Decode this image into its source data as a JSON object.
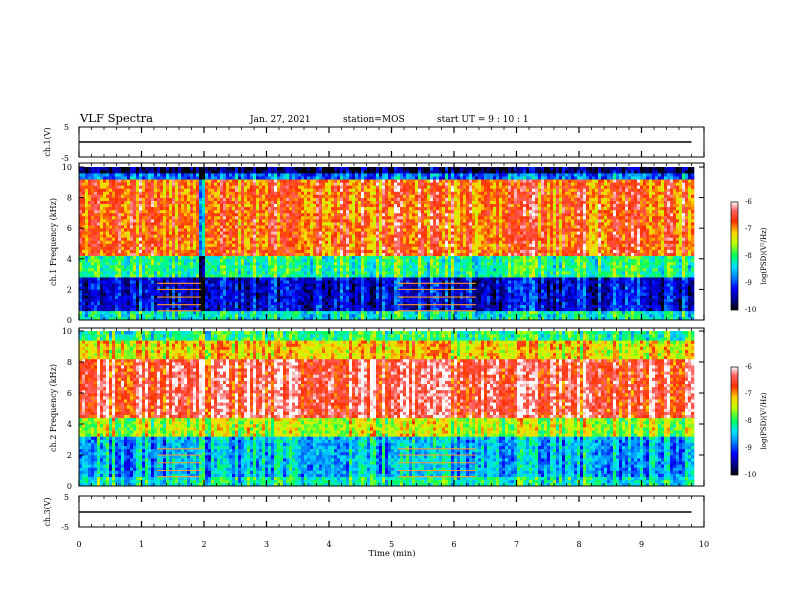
{
  "header": {
    "title": "VLF Spectra",
    "date": "Jan. 27, 2021",
    "station": "station=MOS",
    "start": "start UT =  9 : 10 : 1"
  },
  "chart_data": [
    {
      "type": "line",
      "name": "ch1-waveform",
      "ylabel": "ch.1(V)",
      "ylim": [
        -5,
        5
      ],
      "yticks": [
        "5",
        "-5"
      ],
      "xlim": [
        0,
        10
      ],
      "x": [
        0,
        1.95,
        2.0,
        9.8
      ],
      "y": [
        0,
        0,
        0,
        0
      ]
    },
    {
      "type": "heatmap",
      "name": "ch1-spectrogram",
      "ylabel": "ch.1 Frequency (kHz)",
      "ylim": [
        0,
        10
      ],
      "yticks": [
        "0",
        "2",
        "4",
        "6",
        "8",
        "10"
      ],
      "xlim": [
        0,
        10
      ],
      "data_extent_x": [
        0,
        9.8
      ],
      "colorbar": {
        "label": "log(PSD)(V²/Hz)",
        "range": [
          -10,
          -6
        ],
        "ticks": [
          "-6",
          "-7",
          "-8",
          "-9",
          "-10"
        ]
      }
    },
    {
      "type": "heatmap",
      "name": "ch2-spectrogram",
      "ylabel": "ch.2 Frequency (kHz)",
      "ylim": [
        0,
        10
      ],
      "yticks": [
        "0",
        "2",
        "4",
        "6",
        "8",
        "10"
      ],
      "xlim": [
        0,
        10
      ],
      "data_extent_x": [
        0,
        9.8
      ],
      "colorbar": {
        "label": "log(PSD)(V²/Hz)",
        "range": [
          -10,
          -6
        ],
        "ticks": [
          "-6",
          "-7",
          "-8",
          "-9",
          "-10"
        ]
      }
    },
    {
      "type": "line",
      "name": "ch3-waveform",
      "ylabel": "ch.3(V)",
      "ylim": [
        -5,
        5
      ],
      "yticks": [
        "5",
        "-5"
      ],
      "xlim": [
        0,
        10
      ],
      "x": [
        0,
        9.8
      ],
      "y": [
        0,
        0
      ]
    }
  ],
  "xaxis": {
    "label": "Time (min)",
    "ticks": [
      "0",
      "1",
      "2",
      "3",
      "4",
      "5",
      "6",
      "7",
      "8",
      "9",
      "10"
    ]
  }
}
